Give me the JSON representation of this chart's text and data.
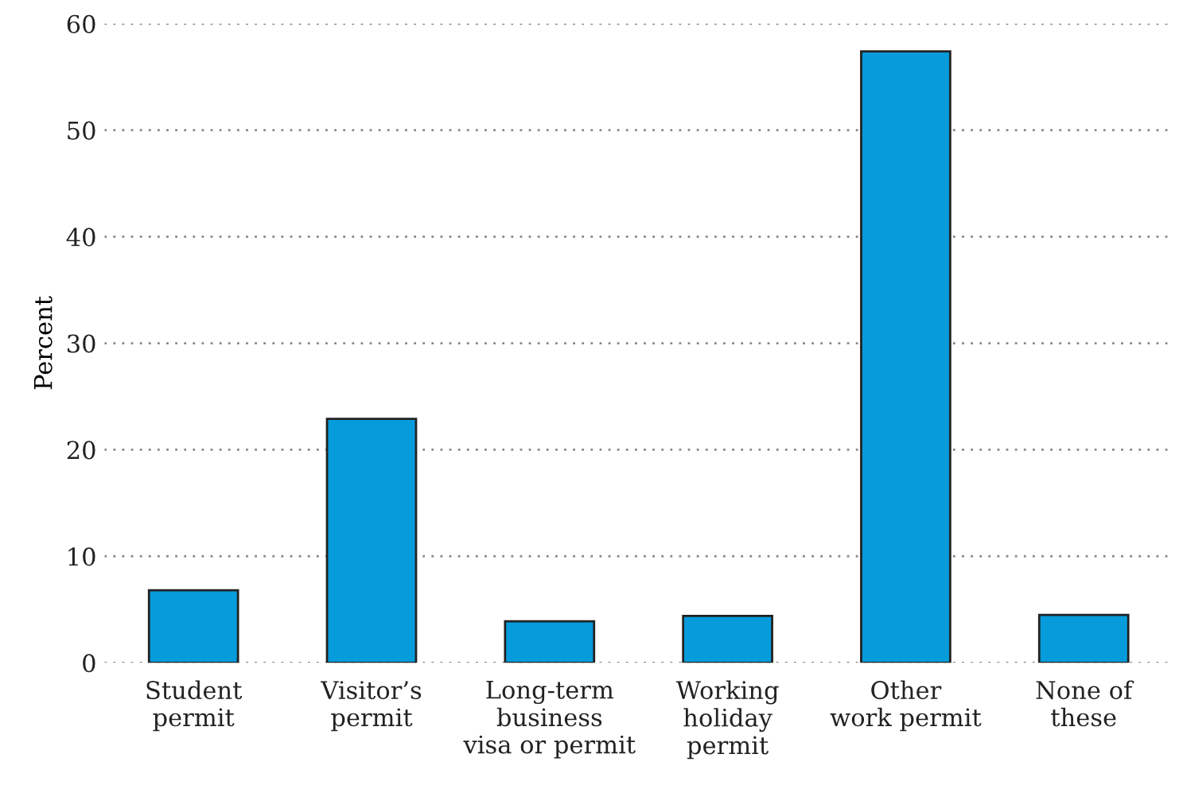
{
  "chart_data": {
    "type": "bar",
    "ylabel": "Percent",
    "categories": [
      "Student\npermit",
      "Visitor’s\npermit",
      "Long-term\nbusiness\nvisa or permit",
      "Working\nholiday\npermit",
      "Other\nwork permit",
      "None of\nthese"
    ],
    "values": [
      6.8,
      22.9,
      3.9,
      4.4,
      57.4,
      4.5
    ],
    "color": "#069cdb",
    "ylim": [
      0,
      60
    ],
    "yticks": [
      0,
      10,
      20,
      30,
      40,
      50,
      60
    ],
    "grid": "y",
    "legend": false
  }
}
